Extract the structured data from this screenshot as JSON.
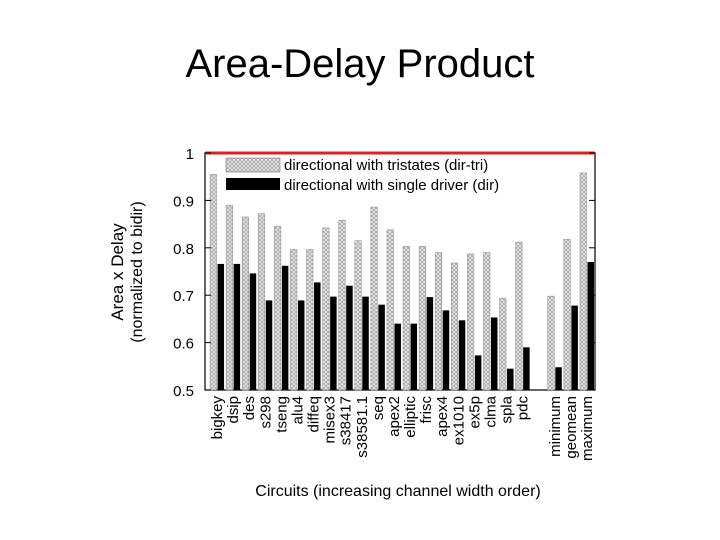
{
  "slide": {
    "title": "Area-Delay Product"
  },
  "chart_data": {
    "type": "bar",
    "xlabel": "Circuits (increasing channel width order)",
    "ylabel_line1": "Area x Delay",
    "ylabel_line2": "(normalized to bidir)",
    "ylim": [
      0.5,
      1.0
    ],
    "yticks": [
      "0.5",
      "0.6",
      "0.7",
      "0.8",
      "0.9",
      "1"
    ],
    "grid": false,
    "legend_position": "top-right",
    "reference_line": {
      "value": 1.0,
      "color": "#e02020"
    },
    "categories": [
      "bigkey",
      "dsip",
      "des",
      "s298",
      "tseng",
      "alu4",
      "diffeq",
      "misex3",
      "s38417",
      "s38581.1",
      "seq",
      "apex2",
      "elliptic",
      "frisc",
      "apex4",
      "ex1010",
      "ex5p",
      "clma",
      "spla",
      "pdc",
      "",
      "minimum",
      "geomean",
      "maximum"
    ],
    "series": [
      {
        "name": "directional with tristates (dir-tri)",
        "color": "#d8d8d8",
        "pattern": "crosshatch",
        "values": [
          0.955,
          0.89,
          0.865,
          0.872,
          0.845,
          0.797,
          0.797,
          0.842,
          0.858,
          0.815,
          0.886,
          0.838,
          0.803,
          0.803,
          0.79,
          0.768,
          0.787,
          0.79,
          0.693,
          0.812,
          null,
          0.698,
          0.818,
          0.958
        ]
      },
      {
        "name": "directional with single driver (dir)",
        "color": "#000000",
        "pattern": "solid",
        "values": [
          0.766,
          0.766,
          0.746,
          0.689,
          0.762,
          0.689,
          0.727,
          0.697,
          0.72,
          0.697,
          0.68,
          0.64,
          0.64,
          0.696,
          0.668,
          0.647,
          0.573,
          0.653,
          0.545,
          0.59,
          null,
          0.548,
          0.678,
          0.77
        ]
      }
    ]
  }
}
